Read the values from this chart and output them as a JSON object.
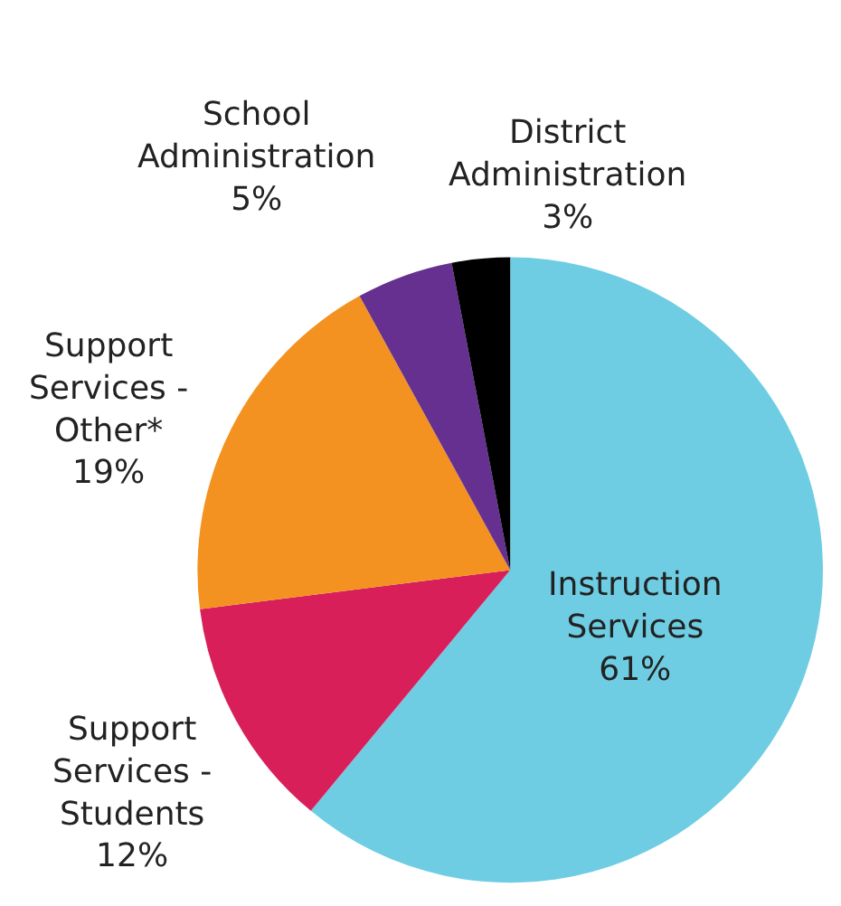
{
  "chart_data": {
    "type": "pie",
    "categories": [
      "Instruction Services",
      "Support Services - Students",
      "Support Services - Other*",
      "School Administration",
      "District Administration"
    ],
    "values": [
      61,
      12,
      19,
      5,
      3
    ],
    "value_labels": [
      "61%",
      "12%",
      "19%",
      "5%",
      "3%"
    ],
    "colors": [
      "#6ecde3",
      "#d81f5a",
      "#f39220",
      "#65308f",
      "#000000"
    ],
    "legend": false
  }
}
